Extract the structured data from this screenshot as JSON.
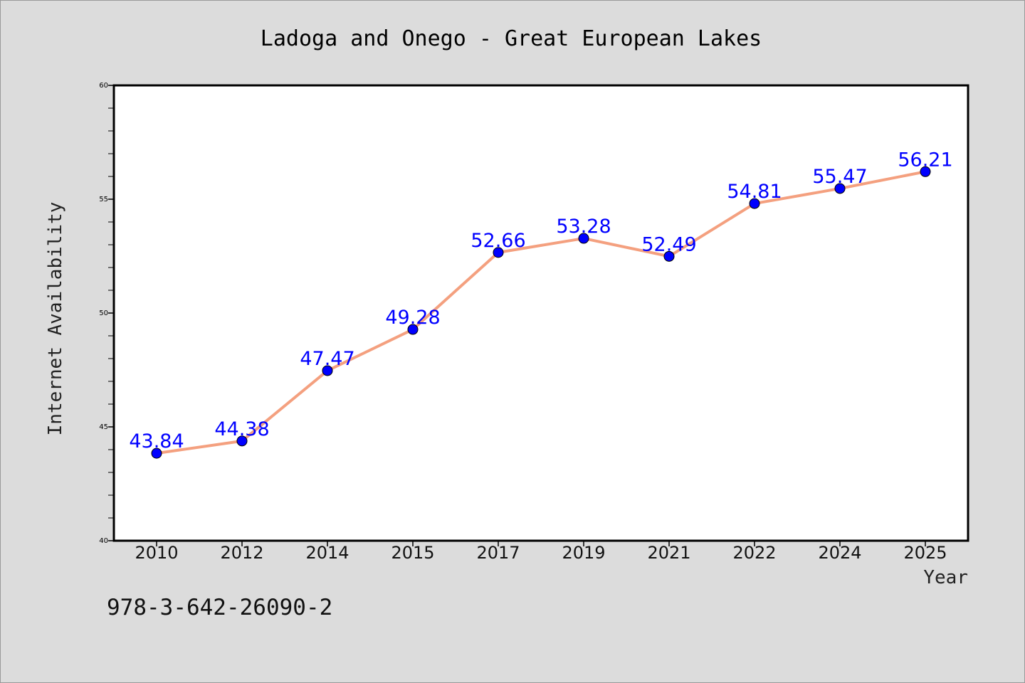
{
  "chart_data": {
    "type": "line",
    "title": "Ladoga and Onego - Great European Lakes",
    "xlabel": "Year",
    "ylabel": "Internet Availability",
    "categories": [
      "2010",
      "2012",
      "2014",
      "2015",
      "2017",
      "2019",
      "2021",
      "2022",
      "2024",
      "2025"
    ],
    "values": [
      43.84,
      44.38,
      47.47,
      49.28,
      52.66,
      53.28,
      52.49,
      54.81,
      55.47,
      56.21
    ],
    "data_labels": [
      "43.84",
      "44.38",
      "47.47",
      "49.28",
      "52.66",
      "53.28",
      "52.49",
      "54.81",
      "55.47",
      "56.21"
    ],
    "ylim": [
      40,
      60
    ],
    "yticks": [
      40,
      45,
      50,
      55,
      60
    ],
    "ytick_labels": [
      "40",
      "45",
      "50",
      "55",
      "60"
    ],
    "grid": false,
    "legend": "none",
    "line_color": "#f4a07f",
    "marker_color": "#0000ff",
    "label_color": "#0000ff",
    "background_color": "#dcdcdc",
    "plot_background": "#ffffff"
  },
  "footer": {
    "isbn": "978-3-642-26090-2"
  }
}
